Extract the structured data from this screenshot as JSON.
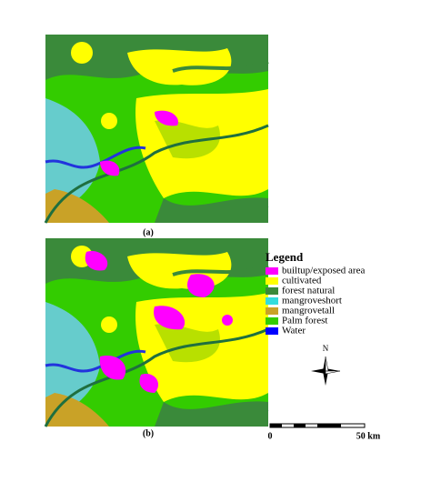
{
  "panels": [
    {
      "label": "(a)"
    },
    {
      "label": "(b)"
    }
  ],
  "legend": {
    "title": "Legend",
    "items": [
      {
        "label": "builtup/exposed area",
        "color": "#ff00ff"
      },
      {
        "label": "cultivated",
        "color": "#ffff00"
      },
      {
        "label": "forest natural",
        "color": "#3a8a3a"
      },
      {
        "label": "mangroveshort",
        "color": "#33dddd"
      },
      {
        "label": "mangrovetall",
        "color": "#c9a227"
      },
      {
        "label": "Palm forest",
        "color": "#33cc00"
      },
      {
        "label": "Water",
        "color": "#0000ff"
      }
    ]
  },
  "compass": {
    "label": "N"
  },
  "scale_bar": {
    "start": "0",
    "end": "50 km"
  }
}
